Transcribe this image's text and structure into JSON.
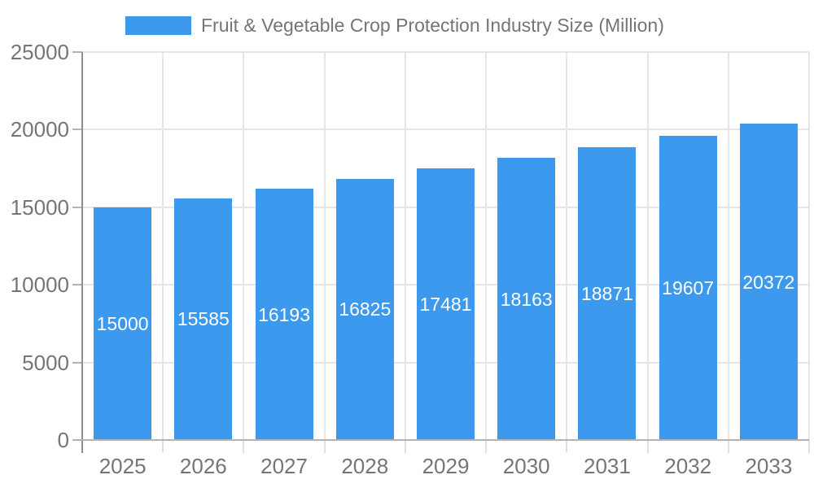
{
  "chart_data": {
    "type": "bar",
    "title": "Fruit & Vegetable Crop Protection Industry Size (Million)",
    "xlabel": "",
    "ylabel": "",
    "categories": [
      "2025",
      "2026",
      "2027",
      "2028",
      "2029",
      "2030",
      "2031",
      "2032",
      "2033"
    ],
    "series": [
      {
        "name": "Fruit & Vegetable Crop Protection Industry Size (Million)",
        "color": "#3C99ED",
        "values": [
          15000,
          15585,
          16193,
          16825,
          17481,
          18163,
          18871,
          19607,
          20372
        ]
      }
    ],
    "value_labels": {
      "visible": true,
      "position": "inside-center",
      "color": "#ffffff"
    },
    "ylim": [
      0,
      25000
    ],
    "yticks": [
      0,
      5000,
      10000,
      15000,
      20000,
      25000
    ],
    "grid": true,
    "legend_position": "top"
  },
  "colors": {
    "background": "#ffffff",
    "bar": "#3C99ED",
    "axis_text": "#757575",
    "value_label_text": "#ffffff",
    "gridline": "#e6e6e6",
    "x_axis_line": "#b3b3b3",
    "y_axis_line": "#8f8f8f"
  }
}
